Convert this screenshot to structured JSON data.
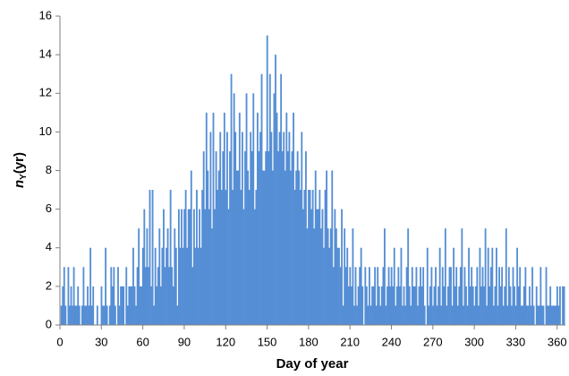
{
  "chart_data": {
    "type": "bar",
    "xlabel": "Day of year",
    "ylabel_parts": [
      "n",
      "Y",
      "(yr)"
    ],
    "color": "#558ed5",
    "xlim": [
      0,
      366
    ],
    "xticks": [
      0,
      30,
      60,
      90,
      120,
      150,
      180,
      210,
      240,
      270,
      300,
      330,
      360
    ],
    "ylim": [
      0,
      16
    ],
    "yticks": [
      0,
      2,
      4,
      6,
      8,
      10,
      12,
      14,
      16
    ],
    "x": [
      1,
      2,
      3,
      4,
      5,
      6,
      7,
      8,
      9,
      10,
      11,
      12,
      13,
      14,
      15,
      16,
      17,
      18,
      19,
      20,
      21,
      22,
      23,
      24,
      25,
      26,
      27,
      28,
      29,
      30,
      31,
      32,
      33,
      34,
      35,
      36,
      37,
      38,
      39,
      40,
      41,
      42,
      43,
      44,
      45,
      46,
      47,
      48,
      49,
      50,
      51,
      52,
      53,
      54,
      55,
      56,
      57,
      58,
      59,
      60,
      61,
      62,
      63,
      64,
      65,
      66,
      67,
      68,
      69,
      70,
      71,
      72,
      73,
      74,
      75,
      76,
      77,
      78,
      79,
      80,
      81,
      82,
      83,
      84,
      85,
      86,
      87,
      88,
      89,
      90,
      91,
      92,
      93,
      94,
      95,
      96,
      97,
      98,
      99,
      100,
      101,
      102,
      103,
      104,
      105,
      106,
      107,
      108,
      109,
      110,
      111,
      112,
      113,
      114,
      115,
      116,
      117,
      118,
      119,
      120,
      121,
      122,
      123,
      124,
      125,
      126,
      127,
      128,
      129,
      130,
      131,
      132,
      133,
      134,
      135,
      136,
      137,
      138,
      139,
      140,
      141,
      142,
      143,
      144,
      145,
      146,
      147,
      148,
      149,
      150,
      151,
      152,
      153,
      154,
      155,
      156,
      157,
      158,
      159,
      160,
      161,
      162,
      163,
      164,
      165,
      166,
      167,
      168,
      169,
      170,
      171,
      172,
      173,
      174,
      175,
      176,
      177,
      178,
      179,
      180,
      181,
      182,
      183,
      184,
      185,
      186,
      187,
      188,
      189,
      190,
      191,
      192,
      193,
      194,
      195,
      196,
      197,
      198,
      199,
      200,
      201,
      202,
      203,
      204,
      205,
      206,
      207,
      208,
      209,
      210,
      211,
      212,
      213,
      214,
      215,
      216,
      217,
      218,
      219,
      220,
      221,
      222,
      223,
      224,
      225,
      226,
      227,
      228,
      229,
      230,
      231,
      232,
      233,
      234,
      235,
      236,
      237,
      238,
      239,
      240,
      241,
      242,
      243,
      244,
      245,
      246,
      247,
      248,
      249,
      250,
      251,
      252,
      253,
      254,
      255,
      256,
      257,
      258,
      259,
      260,
      261,
      262,
      263,
      264,
      265,
      266,
      267,
      268,
      269,
      270,
      271,
      272,
      273,
      274,
      275,
      276,
      277,
      278,
      279,
      280,
      281,
      282,
      283,
      284,
      285,
      286,
      287,
      288,
      289,
      290,
      291,
      292,
      293,
      294,
      295,
      296,
      297,
      298,
      299,
      300,
      301,
      302,
      303,
      304,
      305,
      306,
      307,
      308,
      309,
      310,
      311,
      312,
      313,
      314,
      315,
      316,
      317,
      318,
      319,
      320,
      321,
      322,
      323,
      324,
      325,
      326,
      327,
      328,
      329,
      330,
      331,
      332,
      333,
      334,
      335,
      336,
      337,
      338,
      339,
      340,
      341,
      342,
      343,
      344,
      345,
      346,
      347,
      348,
      349,
      350,
      351,
      352,
      353,
      354,
      355,
      356,
      357,
      358,
      359,
      360,
      361,
      362,
      363,
      364,
      365
    ],
    "values": [
      1,
      2,
      3,
      1,
      0,
      3,
      1,
      2,
      1,
      3,
      1,
      1,
      2,
      1,
      0,
      1,
      3,
      1,
      1,
      2,
      1,
      4,
      1,
      2,
      0,
      0,
      1,
      0,
      0,
      2,
      1,
      1,
      4,
      1,
      0,
      1,
      3,
      2,
      3,
      1,
      0,
      3,
      1,
      2,
      2,
      2,
      0,
      3,
      1,
      2,
      2,
      2,
      4,
      2,
      1,
      3,
      5,
      2,
      2,
      4,
      6,
      3,
      5,
      3,
      7,
      2,
      7,
      1,
      4,
      2,
      3,
      5,
      2,
      4,
      6,
      3,
      4,
      5,
      3,
      7,
      3,
      2,
      5,
      4,
      1,
      6,
      4,
      6,
      4,
      6,
      7,
      4,
      6,
      6,
      8,
      3,
      6,
      4,
      7,
      4,
      6,
      4,
      7,
      9,
      6,
      11,
      8,
      6,
      10,
      5,
      11,
      6,
      9,
      7,
      8,
      10,
      7,
      9,
      11,
      7,
      10,
      6,
      9,
      13,
      7,
      12,
      10,
      8,
      8,
      11,
      7,
      10,
      6,
      9,
      12,
      8,
      7,
      10,
      9,
      12,
      6,
      7,
      11,
      9,
      10,
      13,
      8,
      8,
      9,
      15,
      9,
      13,
      10,
      8,
      12,
      14,
      11,
      9,
      10,
      13,
      9,
      10,
      8,
      11,
      9,
      10,
      8,
      9,
      11,
      7,
      8,
      9,
      8,
      7,
      10,
      6,
      7,
      9,
      5,
      7,
      7,
      6,
      7,
      5,
      8,
      6,
      6,
      7,
      5,
      6,
      4,
      7,
      8,
      5,
      4,
      5,
      8,
      3,
      6,
      5,
      4,
      4,
      3,
      6,
      1,
      5,
      3,
      4,
      2,
      3,
      2,
      5,
      1,
      3,
      1,
      2,
      3,
      4,
      2,
      0,
      3,
      2,
      1,
      3,
      1,
      2,
      2,
      3,
      1,
      3,
      2,
      1,
      2,
      3,
      5,
      1,
      2,
      3,
      2,
      3,
      2,
      4,
      1,
      2,
      3,
      2,
      4,
      1,
      2,
      1,
      3,
      5,
      2,
      1,
      3,
      2,
      2,
      3,
      1,
      2,
      3,
      2,
      3,
      1,
      0,
      4,
      1,
      2,
      3,
      1,
      2,
      3,
      1,
      2,
      4,
      1,
      3,
      2,
      5,
      1,
      2,
      3,
      3,
      1,
      4,
      2,
      3,
      1,
      2,
      3,
      5,
      1,
      3,
      2,
      1,
      4,
      2,
      3,
      2,
      1,
      2,
      3,
      1,
      4,
      2,
      3,
      2,
      5,
      1,
      4,
      2,
      3,
      4,
      1,
      2,
      4,
      1,
      3,
      2,
      3,
      1,
      2,
      5,
      1,
      3,
      2,
      1,
      3,
      2,
      1,
      4,
      2,
      3,
      1,
      1,
      2,
      3,
      1,
      1,
      2,
      1,
      3,
      1,
      0,
      2,
      1,
      1,
      3,
      1,
      1,
      0,
      3,
      1,
      1,
      2,
      1,
      1,
      1,
      1,
      2,
      1,
      2,
      0,
      2,
      2
    ]
  }
}
